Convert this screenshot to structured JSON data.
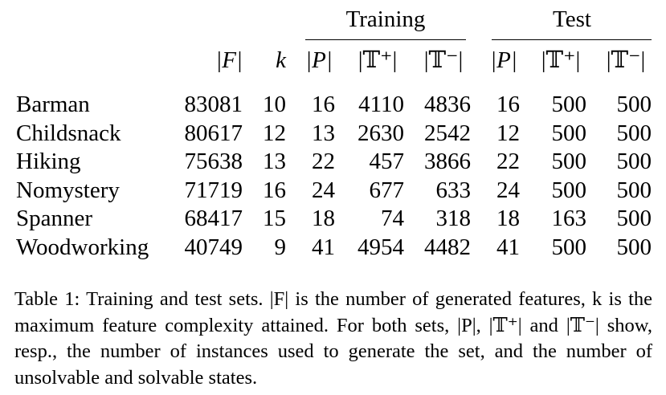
{
  "table": {
    "group_headers": {
      "training": "Training",
      "test": "Test"
    },
    "column_headers": {
      "F": "|F|",
      "k": "k",
      "train_P": "|P|",
      "train_Tplus": "|𝕋⁺|",
      "train_Tminus": "|𝕋⁻|",
      "test_P": "|P|",
      "test_Tplus": "|𝕋⁺|",
      "test_Tminus": "|𝕋⁻|"
    },
    "rows": [
      {
        "domain": "Barman",
        "F": "83081",
        "k": "10",
        "train_P": "16",
        "train_Tplus": "4110",
        "train_Tminus": "4836",
        "test_P": "16",
        "test_Tplus": "500",
        "test_Tminus": "500"
      },
      {
        "domain": "Childsnack",
        "F": "80617",
        "k": "12",
        "train_P": "13",
        "train_Tplus": "2630",
        "train_Tminus": "2542",
        "test_P": "12",
        "test_Tplus": "500",
        "test_Tminus": "500"
      },
      {
        "domain": "Hiking",
        "F": "75638",
        "k": "13",
        "train_P": "22",
        "train_Tplus": "457",
        "train_Tminus": "3866",
        "test_P": "22",
        "test_Tplus": "500",
        "test_Tminus": "500"
      },
      {
        "domain": "Nomystery",
        "F": "71719",
        "k": "16",
        "train_P": "24",
        "train_Tplus": "677",
        "train_Tminus": "633",
        "test_P": "24",
        "test_Tplus": "500",
        "test_Tminus": "500"
      },
      {
        "domain": "Spanner",
        "F": "68417",
        "k": "15",
        "train_P": "18",
        "train_Tplus": "74",
        "train_Tminus": "318",
        "test_P": "18",
        "test_Tplus": "163",
        "test_Tminus": "500"
      },
      {
        "domain": "Woodworking",
        "F": "40749",
        "k": "9",
        "train_P": "41",
        "train_Tplus": "4954",
        "train_Tminus": "4482",
        "test_P": "41",
        "test_Tplus": "500",
        "test_Tminus": "500"
      }
    ]
  },
  "caption": {
    "label": "Table 1:",
    "text": "Training and test sets. |F| is the number of generated features, k is the maximum feature complexity attained. For both sets, |P|, |𝕋⁺| and |𝕋⁻| show, resp., the number of instances used to generate the set, and the number of unsolvable and solvable states."
  }
}
